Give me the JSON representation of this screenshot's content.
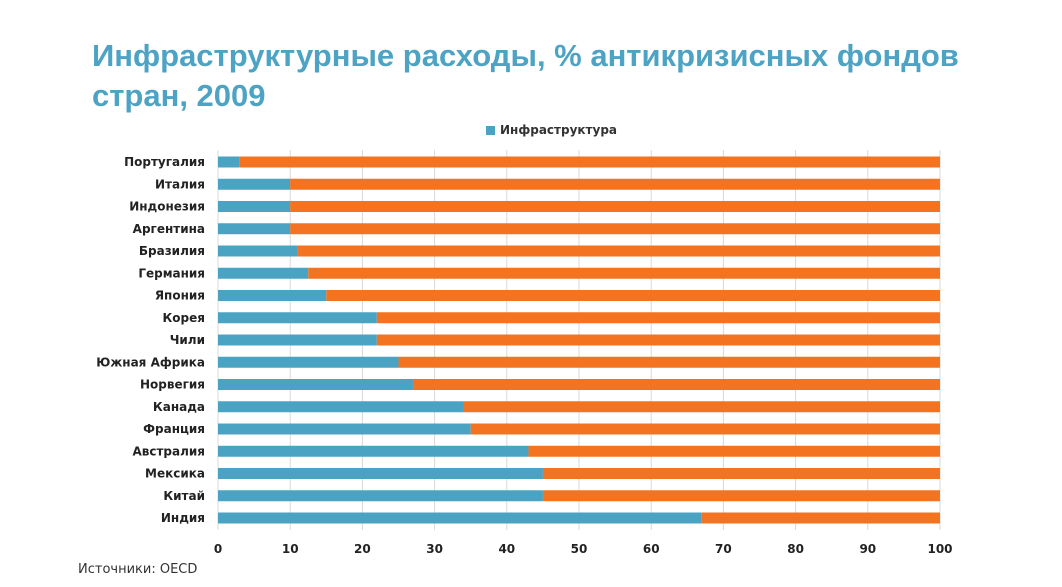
{
  "chart_data": {
    "type": "bar",
    "orientation": "horizontal",
    "stacked": true,
    "title": "Инфраструктурные расходы, % антикризисных фондов стран, 2009",
    "categories": [
      "Португалия",
      "Италия",
      "Индонезия",
      "Аргентина",
      "Бразилия",
      "Германия",
      "Япония",
      "Корея",
      "Чили",
      "Южная Африка",
      "Норвегия",
      "Канада",
      "Франция",
      "Австралия",
      "Мексика",
      "Китай",
      "Индия"
    ],
    "series": [
      {
        "name": "Инфраструктура",
        "color": "#4ba3c3",
        "values": [
          3,
          10,
          10,
          10,
          11,
          12.5,
          15,
          22,
          22,
          25,
          27,
          34,
          35,
          43,
          45,
          45,
          67
        ]
      },
      {
        "color": "#f37321",
        "values": [
          97,
          90,
          90,
          90,
          89,
          87.5,
          85,
          78,
          78,
          75,
          73,
          66,
          65,
          57,
          55,
          55,
          33
        ]
      }
    ],
    "xlim": [
      0,
      100
    ],
    "xticks": [
      0,
      10,
      20,
      30,
      40,
      50,
      60,
      70,
      80,
      90,
      100
    ],
    "grid": true,
    "legend_position": "top",
    "source": "Источники: OECD"
  }
}
